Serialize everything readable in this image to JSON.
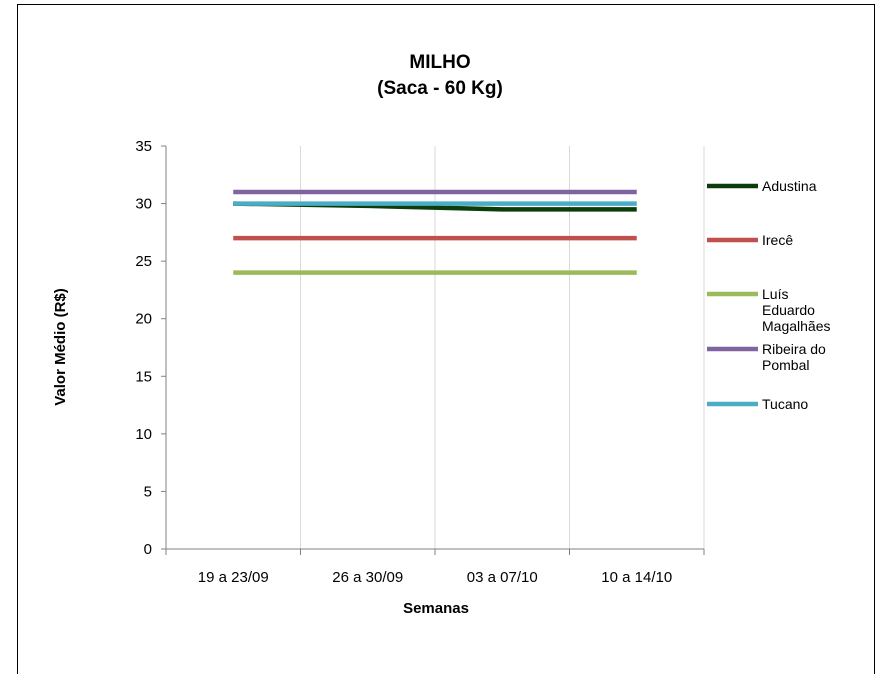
{
  "chart_data": {
    "type": "line",
    "title": "MILHO",
    "subtitle": "(Saca - 60 Kg)",
    "xlabel": "Semanas",
    "ylabel": "Valor Médio (R$)",
    "categories": [
      "19 a 23/09",
      "26 a 30/09",
      "03 a 07/10",
      "10 a 14/10"
    ],
    "ylim": [
      0,
      35
    ],
    "yticks": [
      "0",
      "5",
      "10",
      "15",
      "20",
      "25",
      "30",
      "35"
    ],
    "grid": "vertical",
    "legend_position": "right",
    "series": [
      {
        "name": "Adustina",
        "values": [
          30,
          29.8,
          29.5,
          29.5
        ],
        "color": "#0b3d0b"
      },
      {
        "name": "Irecê",
        "values": [
          27,
          27,
          27,
          27
        ],
        "color": "#c0504d"
      },
      {
        "name": "Luís Eduardo Magalhães",
        "name_lines": [
          "Luís",
          "Eduardo",
          "Magalhães"
        ],
        "values": [
          24,
          24,
          24,
          24
        ],
        "color": "#9bbb59"
      },
      {
        "name": "Ribeira do Pombal",
        "name_lines": [
          "Ribeira do",
          "Pombal"
        ],
        "values": [
          31,
          31,
          31,
          31
        ],
        "color": "#8064a2"
      },
      {
        "name": "Tucano",
        "values": [
          30,
          30,
          30,
          30
        ],
        "color": "#4bacc6"
      }
    ]
  }
}
